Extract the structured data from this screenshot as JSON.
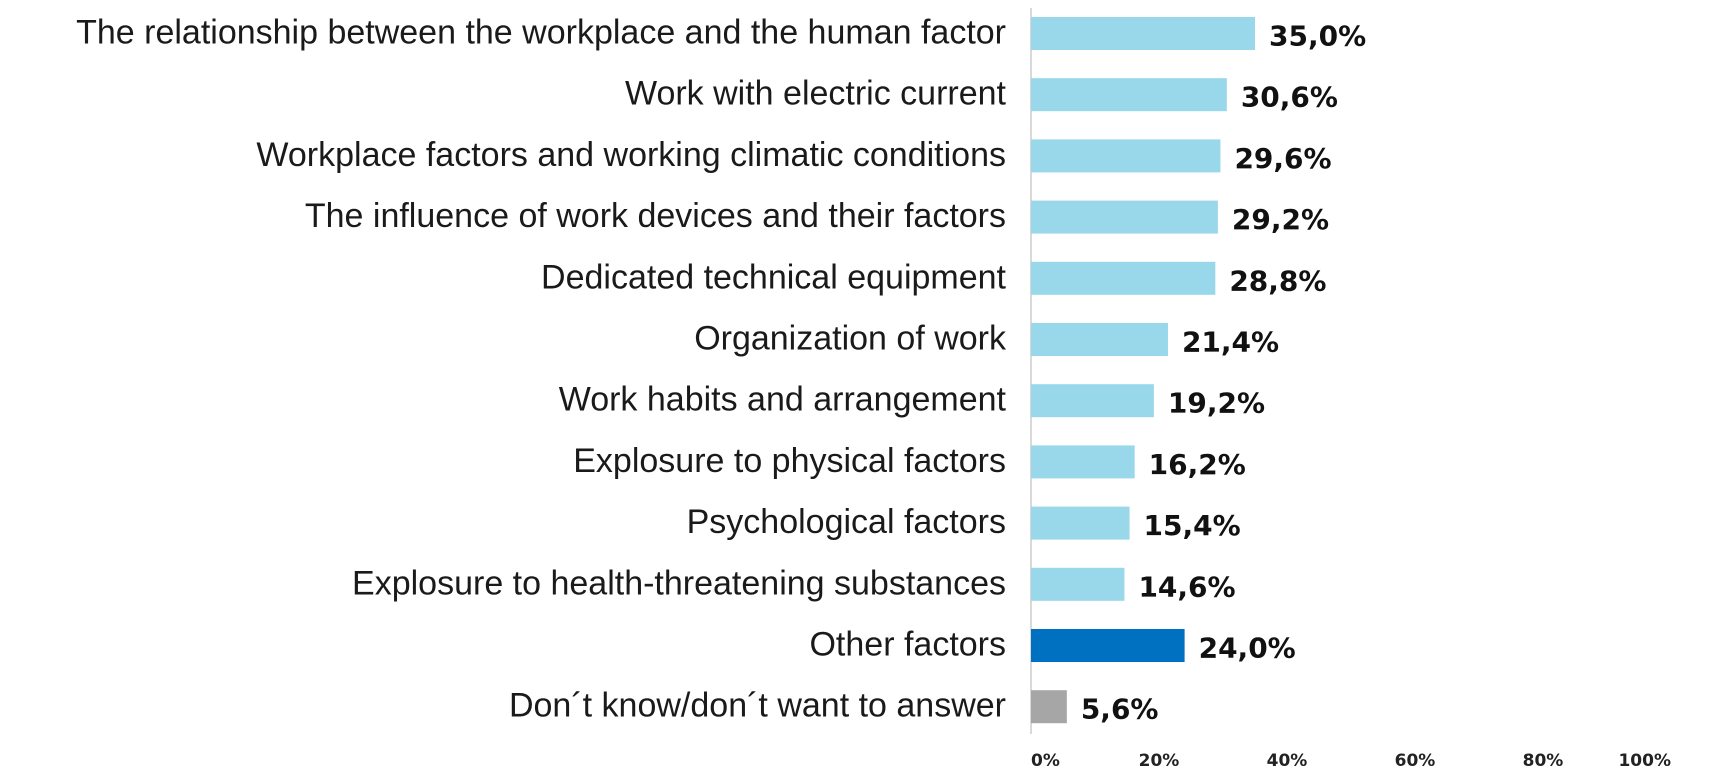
{
  "chart_data": {
    "type": "bar",
    "orientation": "horizontal",
    "title": "",
    "xlabel": "",
    "ylabel": "",
    "xlim": [
      0,
      100
    ],
    "categories": [
      "The relationship between the workplace and  the human factor",
      "Work with electric current",
      "Workplace factors and working climatic conditions",
      "The influence of work devices and their factors",
      "Dedicated technical equipment",
      "Organization of work",
      "Work habits and arrangement",
      "Explosure to physical factors",
      "Psychological factors",
      "Explosure to health-threatening substances",
      "Other factors",
      "Don´t know/don´t want to answer"
    ],
    "values": [
      35.0,
      30.6,
      29.6,
      29.2,
      28.8,
      21.4,
      19.2,
      16.2,
      15.4,
      14.6,
      24.0,
      5.6
    ],
    "value_labels": [
      "35,0%",
      "30,6%",
      "29,6%",
      "29,2%",
      "28,8%",
      "21,4%",
      "19,2%",
      "16,2%",
      "15,4%",
      "14,6%",
      "24,0%",
      "5,6%"
    ],
    "bar_colors": [
      "#99d8ea",
      "#99d8ea",
      "#99d8ea",
      "#99d8ea",
      "#99d8ea",
      "#99d8ea",
      "#99d8ea",
      "#99d8ea",
      "#99d8ea",
      "#99d8ea",
      "#0070c0",
      "#a6a6a6"
    ],
    "x_ticks": [
      0,
      20,
      40,
      60,
      80,
      100
    ],
    "x_tick_labels": [
      "0%",
      "20%",
      "40%",
      "60%",
      "80%",
      "100%"
    ],
    "grid": false,
    "legend": "none"
  }
}
